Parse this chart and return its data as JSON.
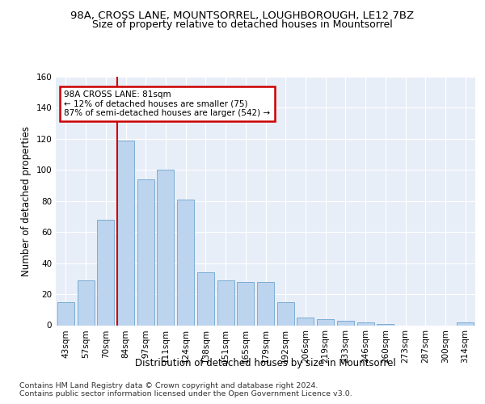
{
  "title1": "98A, CROSS LANE, MOUNTSORREL, LOUGHBOROUGH, LE12 7BZ",
  "title2": "Size of property relative to detached houses in Mountsorrel",
  "xlabel": "Distribution of detached houses by size in Mountsorrel",
  "ylabel": "Number of detached properties",
  "categories": [
    "43sqm",
    "57sqm",
    "70sqm",
    "84sqm",
    "97sqm",
    "111sqm",
    "124sqm",
    "138sqm",
    "151sqm",
    "165sqm",
    "179sqm",
    "192sqm",
    "206sqm",
    "219sqm",
    "233sqm",
    "246sqm",
    "260sqm",
    "273sqm",
    "287sqm",
    "300sqm",
    "314sqm"
  ],
  "values": [
    15,
    29,
    68,
    119,
    94,
    100,
    81,
    34,
    29,
    28,
    28,
    15,
    5,
    4,
    3,
    2,
    1,
    0,
    0,
    0,
    2
  ],
  "bar_color": "#bdd4ee",
  "bar_edge_color": "#7aadd4",
  "ref_line_color": "#cc0000",
  "annotation_text": "98A CROSS LANE: 81sqm\n← 12% of detached houses are smaller (75)\n87% of semi-detached houses are larger (542) →",
  "annotation_box_color": "#cc0000",
  "ylim": [
    0,
    160
  ],
  "yticks": [
    0,
    20,
    40,
    60,
    80,
    100,
    120,
    140,
    160
  ],
  "background_color": "#e8eef8",
  "grid_color": "#ffffff",
  "footer_text": "Contains HM Land Registry data © Crown copyright and database right 2024.\nContains public sector information licensed under the Open Government Licence v3.0.",
  "title1_fontsize": 9.5,
  "title2_fontsize": 9,
  "axis_label_fontsize": 8.5,
  "tick_fontsize": 7.5,
  "footer_fontsize": 6.8
}
